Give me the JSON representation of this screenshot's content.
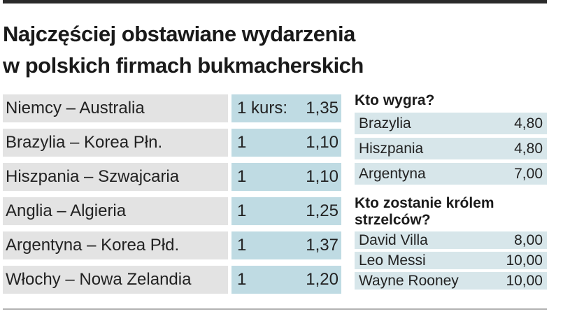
{
  "title": {
    "line1": "Najczęściej obstawiane wydarzenia",
    "line2": "w polskich firmach bukmacherskich"
  },
  "matches": [
    {
      "name": "Niemcy – Australia",
      "pick": "1 kurs:",
      "odds": "1,35"
    },
    {
      "name": "Brazylia – Korea Płn.",
      "pick": "1",
      "odds": "1,10"
    },
    {
      "name": "Hiszpania – Szwajcaria",
      "pick": "1",
      "odds": "1,10"
    },
    {
      "name": "Anglia – Algieria",
      "pick": "1",
      "odds": "1,25"
    },
    {
      "name": "Argentyna – Korea Płd.",
      "pick": "1",
      "odds": "1,37"
    },
    {
      "name": "Włochy – Nowa Zelandia",
      "pick": "1",
      "odds": "1,20"
    }
  ],
  "winner": {
    "heading": "Kto wygra?",
    "rows": [
      {
        "name": "Brazylia",
        "odds": "4,80"
      },
      {
        "name": "Hiszpania",
        "odds": "4,80"
      },
      {
        "name": "Argentyna",
        "odds": "7,00"
      }
    ]
  },
  "top_scorer": {
    "heading_line1": "Kto zostanie królem",
    "heading_line2": "strzelców?",
    "rows": [
      {
        "name": "David Villa",
        "odds": "8,00"
      },
      {
        "name": "Leo Messi",
        "odds": "10,00"
      },
      {
        "name": "Wayne Rooney",
        "odds": "10,00"
      }
    ]
  }
}
